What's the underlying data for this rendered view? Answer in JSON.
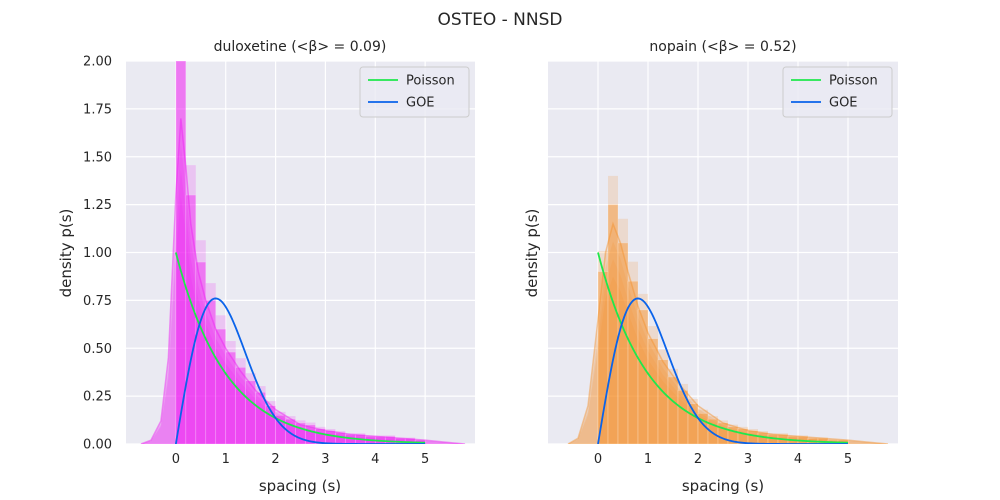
{
  "figure": {
    "suptitle": "OSTEO - NNSD"
  },
  "legend_labels": {
    "poisson": "Poisson",
    "goe": "GOE"
  },
  "colors": {
    "axes_bg": "#eaeaf2",
    "grid": "#ffffff",
    "poisson": "#1ee84c",
    "goe": "#0a63ea",
    "duloxetine_hist": "#ee1cf2",
    "nopain_hist": "#f5902a"
  },
  "chart_data": [
    {
      "type": "bar",
      "title": "duloxetine (<β> = 0.09)",
      "xlabel": "spacing (s)",
      "ylabel": "density p(s)",
      "xlim": [
        -1,
        6
      ],
      "ylim": [
        0,
        2.0
      ],
      "xticks": [
        0,
        1,
        2,
        3,
        4,
        5
      ],
      "yticks": [
        0.0,
        0.25,
        0.5,
        0.75,
        1.0,
        1.25,
        1.5,
        1.75,
        2.0
      ],
      "ytick_labels": [
        "0.00",
        "0.25",
        "0.50",
        "0.75",
        "1.00",
        "1.25",
        "1.50",
        "1.75",
        "2.00"
      ],
      "grid": true,
      "legend_position": "top-right",
      "histogram": {
        "bin_width": 0.2,
        "bin_centers": [
          0.1,
          0.3,
          0.5,
          0.7,
          0.9,
          1.1,
          1.3,
          1.5,
          1.7,
          1.9,
          2.1,
          2.3,
          2.5,
          2.7,
          2.9,
          3.1,
          3.3,
          3.5,
          3.7,
          3.9,
          4.1,
          4.3,
          4.5,
          4.7,
          4.9
        ],
        "density": [
          2.0,
          1.3,
          0.95,
          0.75,
          0.6,
          0.48,
          0.4,
          0.33,
          0.27,
          0.2,
          0.15,
          0.13,
          0.11,
          0.1,
          0.08,
          0.07,
          0.06,
          0.05,
          0.05,
          0.04,
          0.04,
          0.04,
          0.03,
          0.03,
          0.02
        ]
      },
      "kde": {
        "x": [
          -0.7,
          -0.5,
          -0.3,
          -0.15,
          0.0,
          0.1,
          0.2,
          0.3,
          0.45,
          0.6,
          0.8,
          1.0,
          1.3,
          1.6,
          2.0,
          2.5,
          3.0,
          3.5,
          4.0,
          4.5,
          5.0,
          5.4,
          5.8
        ],
        "y": [
          0.0,
          0.02,
          0.12,
          0.45,
          1.3,
          1.7,
          1.45,
          1.15,
          0.9,
          0.75,
          0.6,
          0.5,
          0.38,
          0.28,
          0.18,
          0.1,
          0.07,
          0.05,
          0.04,
          0.03,
          0.02,
          0.01,
          0.0
        ]
      },
      "series": [
        {
          "name": "Poisson",
          "function": "exp(-s)",
          "x_range": [
            0,
            5
          ]
        },
        {
          "name": "GOE",
          "function": "(pi/2) s exp(-pi s^2 / 4)",
          "x_range": [
            0,
            5
          ]
        }
      ]
    },
    {
      "type": "bar",
      "title": "nopain (<β> = 0.52)",
      "xlabel": "spacing (s)",
      "ylabel": "density p(s)",
      "xlim": [
        -1,
        6
      ],
      "ylim": [
        0,
        2.0
      ],
      "xticks": [
        0,
        1,
        2,
        3,
        4,
        5
      ],
      "grid": true,
      "legend_position": "top-right",
      "histogram": {
        "bin_width": 0.2,
        "bin_centers": [
          0.1,
          0.3,
          0.5,
          0.7,
          0.9,
          1.1,
          1.3,
          1.5,
          1.7,
          1.9,
          2.1,
          2.3,
          2.5,
          2.7,
          2.9,
          3.1,
          3.3,
          3.5,
          3.7,
          3.9,
          4.1,
          4.3,
          4.5,
          4.7,
          4.9
        ],
        "density": [
          0.9,
          1.25,
          1.05,
          0.85,
          0.7,
          0.55,
          0.44,
          0.35,
          0.28,
          0.21,
          0.16,
          0.13,
          0.11,
          0.09,
          0.08,
          0.07,
          0.06,
          0.05,
          0.05,
          0.04,
          0.04,
          0.03,
          0.03,
          0.02,
          0.02
        ]
      },
      "kde": {
        "x": [
          -0.6,
          -0.4,
          -0.2,
          0.0,
          0.15,
          0.3,
          0.45,
          0.6,
          0.8,
          1.0,
          1.3,
          1.6,
          2.0,
          2.5,
          3.0,
          3.5,
          4.0,
          4.5,
          5.0,
          5.4,
          5.8
        ],
        "y": [
          0.0,
          0.03,
          0.2,
          0.65,
          1.0,
          1.15,
          1.05,
          0.9,
          0.72,
          0.58,
          0.43,
          0.32,
          0.2,
          0.11,
          0.07,
          0.05,
          0.04,
          0.03,
          0.02,
          0.01,
          0.0
        ]
      },
      "series": [
        {
          "name": "Poisson",
          "function": "exp(-s)",
          "x_range": [
            0,
            5
          ]
        },
        {
          "name": "GOE",
          "function": "(pi/2) s exp(-pi s^2 / 4)",
          "x_range": [
            0,
            5
          ]
        }
      ]
    }
  ]
}
